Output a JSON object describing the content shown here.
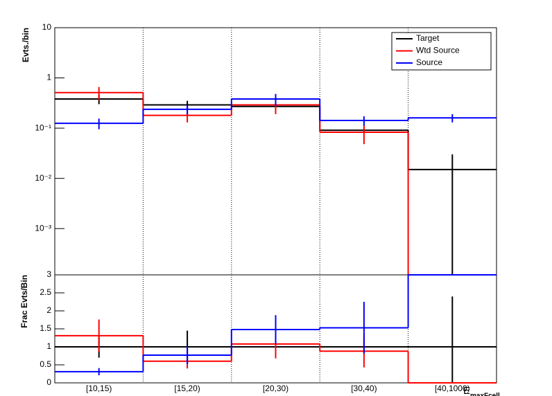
{
  "chart_data": {
    "type": "ratio-step",
    "categories": [
      "[10,15)",
      "[15,20)",
      "[20,30)",
      "[30,40)",
      "[40,1000)"
    ],
    "xlabel": "E",
    "xlabel_subscript": "maxFcell",
    "xgrid": true,
    "legend": "top-right",
    "panels": [
      {
        "ylabel": "Evts./bin",
        "log": true,
        "ylim": [
          0.00012,
          10
        ],
        "yticks": [
          10,
          1,
          {
            "value": 0.1,
            "label": "10⁻¹"
          },
          {
            "value": 0.01,
            "label": "10⁻²"
          },
          {
            "value": 0.001,
            "label": "10⁻³"
          }
        ],
        "series": [
          {
            "name": "Target",
            "color": "#000000",
            "values": [
              0.38,
              0.29,
              0.27,
              0.091,
              0.015
            ],
            "errors": [
              0.08,
              0.06,
              0.06,
              0.01,
              0.015
            ]
          },
          {
            "name": "Wtd Source",
            "color": "#ff0000",
            "values": [
              0.51,
              0.18,
              0.29,
              0.083,
              0
            ],
            "errors": [
              0.15,
              0.05,
              0.1,
              0.035,
              0
            ]
          },
          {
            "name": "Source",
            "color": "#0000ff",
            "values": [
              0.125,
              0.237,
              0.38,
              0.142,
              0.16
            ],
            "errors": [
              0.03,
              0.05,
              0.1,
              0.03,
              0.03
            ]
          }
        ]
      },
      {
        "ylabel": "Frac Evts/Bin",
        "log": false,
        "ylim": [
          0,
          3
        ],
        "yticks": [
          0,
          0.5,
          1,
          1.5,
          2,
          2.5,
          3
        ],
        "series": [
          {
            "color": "#000000",
            "values": [
              1,
              1,
              1,
              1,
              1
            ],
            "errors": [
              0.3,
              0.45,
              0.3,
              0.15,
              1.4
            ]
          },
          {
            "color": "#ff0000",
            "values": [
              1.31,
              0.6,
              1.08,
              0.88,
              0
            ],
            "errors": [
              0.45,
              0.2,
              0.4,
              0.45,
              0
            ]
          },
          {
            "color": "#0000ff",
            "values": [
              0.31,
              0.77,
              1.48,
              1.53,
              3
            ],
            "errors": [
              0.1,
              0.25,
              0.4,
              0.72,
              0
            ]
          }
        ]
      }
    ]
  }
}
